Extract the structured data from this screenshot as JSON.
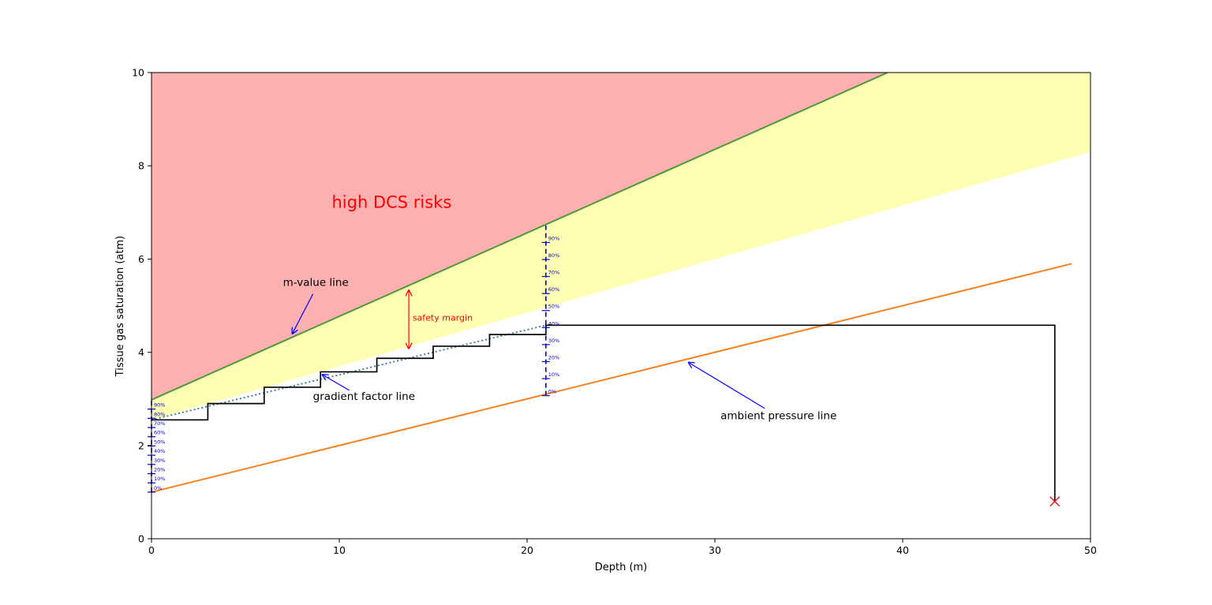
{
  "chart_data": {
    "type": "line",
    "title": "",
    "xlabel": "Depth (m)",
    "ylabel": "Tissue gas saturation (atm)",
    "xlim": [
      0,
      50
    ],
    "ylim": [
      0,
      10
    ],
    "xticks": [
      0,
      10,
      20,
      30,
      40,
      50
    ],
    "yticks": [
      0,
      2,
      4,
      6,
      8,
      10
    ],
    "grid": false,
    "regions": [
      {
        "name": "high DCS risks",
        "color": "#ffb0b0",
        "bounds": "above m-value line"
      },
      {
        "name": "safety margin zone",
        "color": "#ffffb3",
        "bounds": "between m-value line and line y = 1.0 + 0.146x"
      }
    ],
    "series": [
      {
        "role": "m-value",
        "color": "#4a9a37",
        "style": "solid",
        "points": [
          [
            0,
            2.98
          ],
          [
            39.2,
            10
          ]
        ]
      },
      {
        "role": "ambient-pressure",
        "color": "#f58220",
        "style": "solid",
        "points": [
          [
            0,
            1.0
          ],
          [
            49,
            5.9
          ]
        ]
      },
      {
        "role": "gradient-factor",
        "color": "#4a9a37",
        "style": "dotted",
        "points": [
          [
            0,
            2.55
          ],
          [
            21,
            4.58
          ]
        ]
      },
      {
        "role": "dive-profile",
        "color": "#000000",
        "style": "step",
        "points": [
          [
            0,
            2.55
          ],
          [
            3,
            2.55
          ],
          [
            3,
            2.9
          ],
          [
            6,
            2.9
          ],
          [
            6,
            3.25
          ],
          [
            9,
            3.25
          ],
          [
            9,
            3.58
          ],
          [
            12,
            3.58
          ],
          [
            12,
            3.87
          ],
          [
            15,
            3.87
          ],
          [
            15,
            4.13
          ],
          [
            18,
            4.13
          ],
          [
            18,
            4.38
          ],
          [
            21,
            4.38
          ],
          [
            21,
            4.58
          ],
          [
            48.1,
            4.58
          ],
          [
            48.1,
            0.8
          ]
        ]
      }
    ],
    "marker": {
      "symbol": "x",
      "color": "#e8191a",
      "x": 48.1,
      "y": 0.8
    },
    "gf_scales": [
      {
        "x": 0,
        "y0": 1.0,
        "y100": 2.98,
        "color": "#0000cc",
        "labels": [
          "0%",
          "10%",
          "20%",
          "30%",
          "40%",
          "50%",
          "60%",
          "70%",
          "80%",
          "90%"
        ]
      },
      {
        "x": 21,
        "y0": 3.07,
        "y100": 6.72,
        "color": "#0000cc",
        "labels": [
          "0%",
          "10%",
          "20%",
          "30%",
          "40%",
          "50%",
          "60%",
          "70%",
          "80%",
          "90%"
        ]
      }
    ],
    "annotations": [
      {
        "text": "high DCS risks",
        "x": 9.6,
        "y": 7.1,
        "color": "#ff0000",
        "size": "large"
      },
      {
        "text": "m-value line",
        "x": 7.0,
        "y": 5.42,
        "color": "#000000",
        "arrow_to": [
          7.5,
          4.4
        ]
      },
      {
        "text": "gradient factor line",
        "x": 8.6,
        "y": 2.98,
        "color": "#000000",
        "arrow_to": [
          9.1,
          3.52
        ]
      },
      {
        "text": "ambient pressure line",
        "x": 30.3,
        "y": 2.56,
        "color": "#000000",
        "arrow_to": [
          28.6,
          3.78
        ]
      },
      {
        "text": "safety margin",
        "x": 13.9,
        "y": 4.68,
        "color": "#ff0000",
        "size": "small",
        "double_arrow": [
          13.7,
          5.33,
          4.08
        ]
      }
    ]
  }
}
